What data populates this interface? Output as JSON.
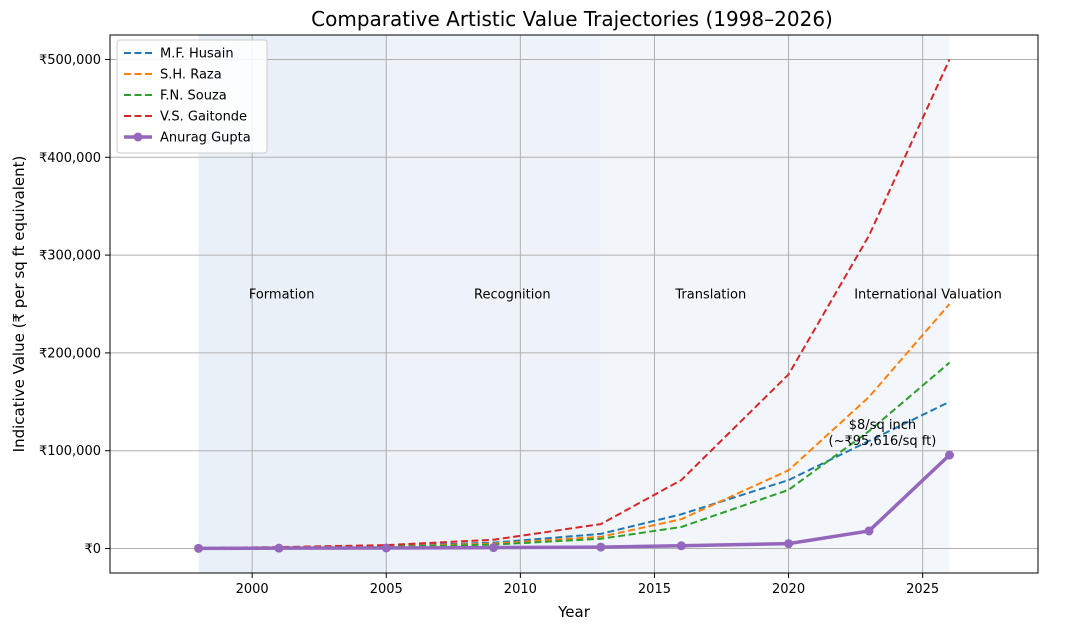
{
  "chart_data": {
    "type": "line",
    "title": "Comparative Artistic Value Trajectories (1998–2026)",
    "xlabel": "Year",
    "ylabel": "Indicative Value (₹ per sq ft equivalent)",
    "xlim": [
      1994.7,
      2029.3
    ],
    "ylim": [
      -25000,
      525000
    ],
    "xticks": [
      2000,
      2005,
      2010,
      2015,
      2020,
      2025
    ],
    "yticks": [
      0,
      100000,
      200000,
      300000,
      400000,
      500000
    ],
    "ytick_labels": [
      "₹0",
      "₹100,000",
      "₹200,000",
      "₹300,000",
      "₹400,000",
      "₹500,000"
    ],
    "grid": true,
    "legend_position": "top-left",
    "phases": [
      {
        "label": "Formation",
        "start": 1998,
        "end": 2005,
        "color": "#e9f0f8",
        "label_x": 2001.1,
        "label_y": 260000
      },
      {
        "label": "Recognition",
        "start": 2005,
        "end": 2013,
        "color": "#eef3f9",
        "label_x": 2009.7,
        "label_y": 260000
      },
      {
        "label": "Translation",
        "start": 2013,
        "end": 2020,
        "color": "#f2f6fb",
        "label_x": 2017.1,
        "label_y": 260000
      },
      {
        "label": "International Valuation",
        "start": 2020,
        "end": 2026,
        "color": "#f3f7fb",
        "label_x": 2025.2,
        "label_y": 260000
      }
    ],
    "series": [
      {
        "name": "M.F. Husain",
        "color": "#1f77b4",
        "style": "dashed",
        "x": [
          1998,
          2001,
          2005,
          2009,
          2013,
          2016,
          2020,
          2023,
          2026
        ],
        "y": [
          500,
          1000,
          2500,
          6000,
          15000,
          35000,
          70000,
          110000,
          150000
        ]
      },
      {
        "name": "S.H. Raza",
        "color": "#ff7f0e",
        "style": "dashed",
        "x": [
          1998,
          2001,
          2005,
          2009,
          2013,
          2016,
          2020,
          2023,
          2026
        ],
        "y": [
          400,
          900,
          2000,
          5000,
          12000,
          30000,
          80000,
          155000,
          250000
        ]
      },
      {
        "name": "F.N. Souza",
        "color": "#2ca02c",
        "style": "dashed",
        "x": [
          1998,
          2001,
          2005,
          2009,
          2013,
          2016,
          2020,
          2023,
          2026
        ],
        "y": [
          300,
          700,
          1800,
          4000,
          10000,
          22000,
          60000,
          120000,
          190000
        ]
      },
      {
        "name": "V.S. Gaitonde",
        "color": "#d62728",
        "style": "dashed",
        "x": [
          1998,
          2001,
          2005,
          2009,
          2013,
          2016,
          2020,
          2023,
          2026
        ],
        "y": [
          600,
          1500,
          3500,
          9000,
          25000,
          70000,
          178000,
          320000,
          500000
        ]
      },
      {
        "name": "Anurag Gupta",
        "color": "#9467bd",
        "style": "solid-markers",
        "x": [
          1998,
          2001,
          2005,
          2009,
          2013,
          2016,
          2020,
          2023,
          2026
        ],
        "y": [
          200,
          400,
          600,
          1000,
          1500,
          2800,
          5000,
          18000,
          95616
        ]
      }
    ],
    "annotations": [
      {
        "lines": [
          "$8/sq inch",
          "(~₹95,616/sq ft)"
        ],
        "x": 2023.5,
        "y": 122000
      }
    ]
  }
}
